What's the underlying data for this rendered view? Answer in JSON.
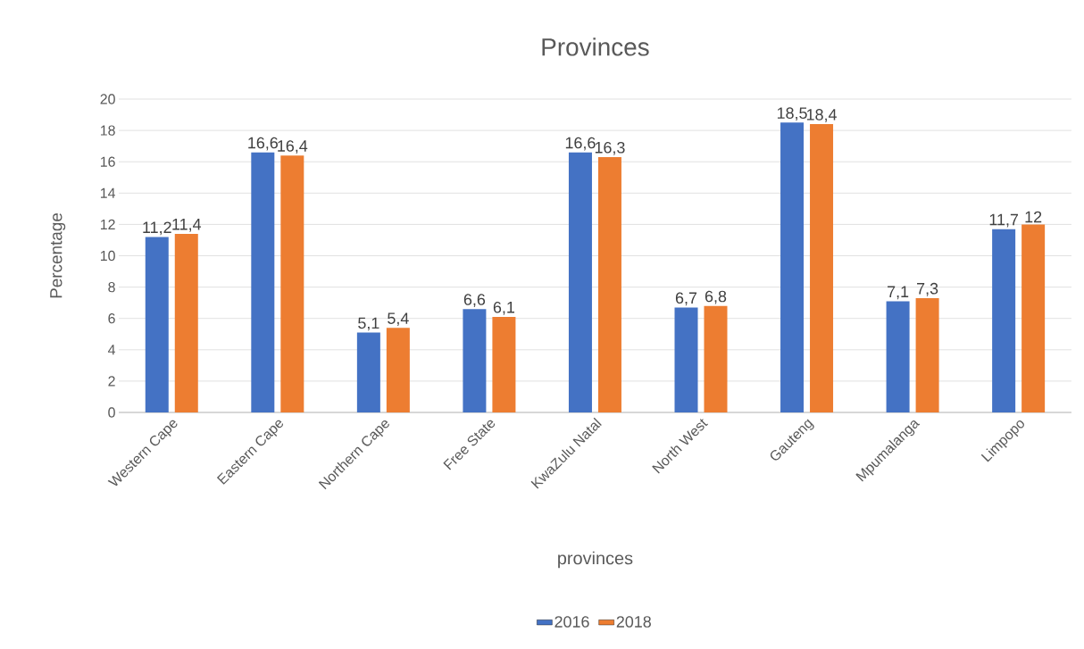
{
  "chart_data": {
    "type": "bar",
    "title": "Provinces",
    "xlabel": "provinces",
    "ylabel": "Percentage",
    "categories": [
      "Western Cape",
      "Eastern Cape",
      "Northern Cape",
      "Free State",
      "KwaZulu Natal",
      "North West",
      "Gauteng",
      "Mpumalanga",
      "Limpopo"
    ],
    "series": [
      {
        "name": "2016",
        "color": "#4472c4",
        "values": [
          11.2,
          16.6,
          5.1,
          6.6,
          16.6,
          6.7,
          18.5,
          7.1,
          11.7
        ],
        "value_labels": [
          "11,2",
          "16,6",
          "5,1",
          "6,6",
          "16,6",
          "6,7",
          "18,5",
          "7,1",
          "11,7"
        ]
      },
      {
        "name": "2018",
        "color": "#ed7d31",
        "values": [
          11.4,
          16.4,
          5.4,
          6.1,
          16.3,
          6.8,
          18.4,
          7.3,
          12
        ],
        "value_labels": [
          "11,4",
          "16,4",
          "5,4",
          "6,1",
          "16,3",
          "6,8",
          "18,4",
          "7,3",
          "12"
        ]
      }
    ],
    "ylim": [
      0,
      20
    ],
    "yticks": [
      0,
      2,
      4,
      6,
      8,
      10,
      12,
      14,
      16,
      18,
      20
    ],
    "grid": "y",
    "legend": "bottom"
  }
}
